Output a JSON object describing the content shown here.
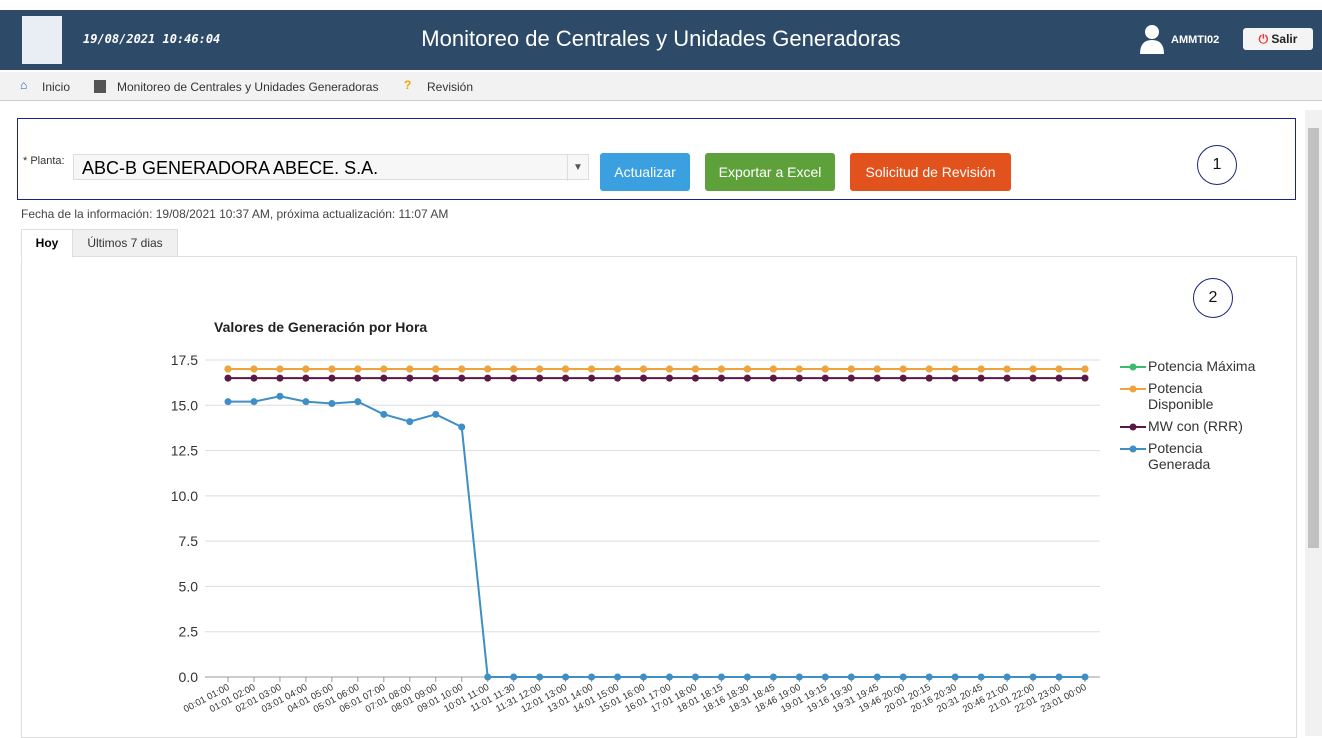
{
  "header": {
    "datetime": "19/08/2021 10:46:04",
    "title": "Monitoreo de Centrales y Unidades Generadoras",
    "user": "AMMTI02",
    "logout": "Salir"
  },
  "nav": {
    "items": [
      "Inicio",
      "Monitoreo de Centrales y Unidades Generadoras",
      "Revisión"
    ]
  },
  "form": {
    "plant_label": "* Planta:",
    "plant_value": "ABC-B GENERADORA ABECE. S.A.",
    "buttons": [
      "Actualizar",
      "Exportar a Excel",
      "Solicitud de Revisión"
    ],
    "marker": "1"
  },
  "info": "Fecha de la información: 19/08/2021 10:37 AM, próxima actualización: 11:07 AM",
  "tabs": [
    "Hoy",
    "Últimos 7 dias"
  ],
  "chart_marker": "2",
  "chart_data": {
    "type": "line",
    "title": "Valores de Generación por Hora",
    "categories": [
      "00:01 01:00",
      "01:01 02:00",
      "02:01 03:00",
      "03:01 04:00",
      "04:01 05:00",
      "05:01 06:00",
      "06:01 07:00",
      "07:01 08:00",
      "08:01 09:00",
      "09:01 10:00",
      "10:01 11:00",
      "11:01 11:30",
      "11:31 12:00",
      "12:01 13:00",
      "13:01 14:00",
      "14:01 15:00",
      "15:01 16:00",
      "16:01 17:00",
      "17:01 18:00",
      "18:01 18:15",
      "18:16 18:30",
      "18:31 18:45",
      "18:46 19:00",
      "19:01 19:15",
      "19:16 19:30",
      "19:31 19:45",
      "19:46 20:00",
      "20:01 20:15",
      "20:16 20:30",
      "20:31 20:45",
      "20:46 21:00",
      "21:01 22:00",
      "22:01 23:00",
      "23:01 00:00"
    ],
    "series": [
      {
        "name": "Potencia Máxima",
        "color": "#3cba6e",
        "values": [
          17,
          17,
          17,
          17,
          17,
          17,
          17,
          17,
          17,
          17,
          17,
          17,
          17,
          17,
          17,
          17,
          17,
          17,
          17,
          17,
          17,
          17,
          17,
          17,
          17,
          17,
          17,
          17,
          17,
          17,
          17,
          17,
          17,
          17
        ]
      },
      {
        "name": "Potencia Disponible",
        "color": "#f0a33a",
        "values": [
          17,
          17,
          17,
          17,
          17,
          17,
          17,
          17,
          17,
          17,
          17,
          17,
          17,
          17,
          17,
          17,
          17,
          17,
          17,
          17,
          17,
          17,
          17,
          17,
          17,
          17,
          17,
          17,
          17,
          17,
          17,
          17,
          17,
          17
        ]
      },
      {
        "name": "MW con (RRR)",
        "color": "#5b1846",
        "values": [
          16.5,
          16.5,
          16.5,
          16.5,
          16.5,
          16.5,
          16.5,
          16.5,
          16.5,
          16.5,
          16.5,
          16.5,
          16.5,
          16.5,
          16.5,
          16.5,
          16.5,
          16.5,
          16.5,
          16.5,
          16.5,
          16.5,
          16.5,
          16.5,
          16.5,
          16.5,
          16.5,
          16.5,
          16.5,
          16.5,
          16.5,
          16.5,
          16.5,
          16.5
        ]
      },
      {
        "name": "Potencia Generada",
        "color": "#3d8fc6",
        "values": [
          15.2,
          15.2,
          15.5,
          15.2,
          15.1,
          15.2,
          14.5,
          14.1,
          14.5,
          13.8,
          0,
          0,
          0,
          0,
          0,
          0,
          0,
          0,
          0,
          0,
          0,
          0,
          0,
          0,
          0,
          0,
          0,
          0,
          0,
          0,
          0,
          0,
          0,
          0
        ]
      }
    ],
    "ylim": [
      0,
      17.5
    ],
    "yticks": [
      {
        "value": 0,
        "label": "0.0"
      },
      2.5,
      {
        "value": 5,
        "label": "5.0"
      },
      7.5,
      {
        "value": 10,
        "label": "10.0"
      },
      12.5,
      {
        "value": 15,
        "label": "15.0"
      },
      17.5
    ],
    "grid": true,
    "legend": "right"
  }
}
